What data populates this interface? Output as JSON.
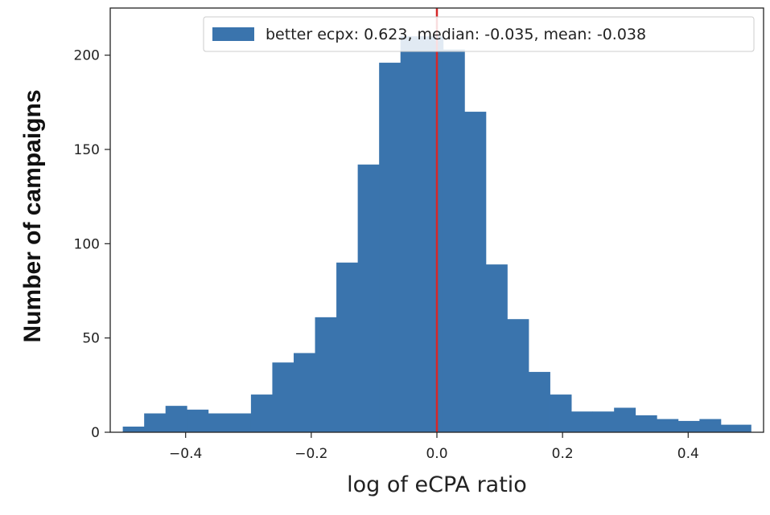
{
  "chart_data": {
    "type": "bar",
    "subtype": "histogram",
    "xlabel": "log of eCPA ratio",
    "ylabel": "Number of campaigns",
    "xlim": [
      -0.52,
      0.52
    ],
    "ylim": [
      0,
      225
    ],
    "x_ticks": [
      -0.4,
      -0.2,
      0.0,
      0.2,
      0.4
    ],
    "x_tick_labels": [
      "−0.4",
      "−0.2",
      "0.0",
      "0.2",
      "0.4"
    ],
    "y_ticks": [
      0,
      50,
      100,
      150,
      200
    ],
    "y_tick_labels": [
      "0",
      "50",
      "100",
      "150",
      "200"
    ],
    "bin_edges": [
      -0.5,
      -0.466,
      -0.432,
      -0.398,
      -0.364,
      -0.33,
      -0.296,
      -0.262,
      -0.228,
      -0.194,
      -0.16,
      -0.126,
      -0.092,
      -0.058,
      -0.024,
      0.01,
      0.044,
      0.078,
      0.112,
      0.146,
      0.18,
      0.214,
      0.248,
      0.282,
      0.316,
      0.35,
      0.384,
      0.418,
      0.452,
      0.5
    ],
    "values": [
      3,
      10,
      14,
      12,
      10,
      10,
      20,
      37,
      42,
      61,
      90,
      142,
      196,
      210,
      210,
      203,
      170,
      89,
      60,
      32,
      20,
      11,
      11,
      13,
      9,
      7,
      6,
      7,
      4
    ],
    "bar_color": "#3a74ad",
    "vline": {
      "x": 0.0,
      "color": "#d62728"
    },
    "legend": {
      "label": "better ecpx: 0.623, median: -0.035, mean: -0.038",
      "location": "top-right"
    },
    "grid": false
  }
}
